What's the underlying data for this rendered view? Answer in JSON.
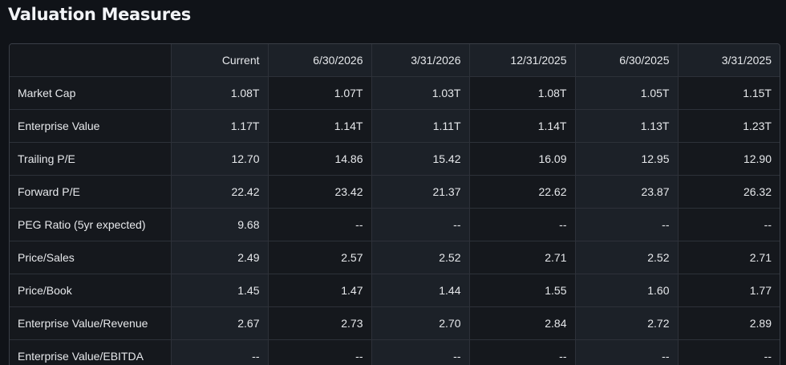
{
  "title": "Valuation Measures",
  "columns": [
    "Current",
    "6/30/2026",
    "3/31/2026",
    "12/31/2025",
    "6/30/2025",
    "3/31/2025"
  ],
  "rows": [
    {
      "label": "Market Cap",
      "values": [
        "1.08T",
        "1.07T",
        "1.03T",
        "1.08T",
        "1.05T",
        "1.15T"
      ]
    },
    {
      "label": "Enterprise Value",
      "values": [
        "1.17T",
        "1.14T",
        "1.11T",
        "1.14T",
        "1.13T",
        "1.23T"
      ]
    },
    {
      "label": "Trailing P/E",
      "values": [
        "12.70",
        "14.86",
        "15.42",
        "16.09",
        "12.95",
        "12.90"
      ]
    },
    {
      "label": "Forward P/E",
      "values": [
        "22.42",
        "23.42",
        "21.37",
        "22.62",
        "23.87",
        "26.32"
      ]
    },
    {
      "label": "PEG Ratio (5yr expected)",
      "values": [
        "9.68",
        "--",
        "--",
        "--",
        "--",
        "--"
      ]
    },
    {
      "label": "Price/Sales",
      "values": [
        "2.49",
        "2.57",
        "2.52",
        "2.71",
        "2.52",
        "2.71"
      ]
    },
    {
      "label": "Price/Book",
      "values": [
        "1.45",
        "1.47",
        "1.44",
        "1.55",
        "1.60",
        "1.77"
      ]
    },
    {
      "label": "Enterprise Value/Revenue",
      "values": [
        "2.67",
        "2.73",
        "2.70",
        "2.84",
        "2.72",
        "2.89"
      ]
    },
    {
      "label": "Enterprise Value/EBITDA",
      "values": [
        "--",
        "--",
        "--",
        "--",
        "--",
        "--"
      ]
    }
  ]
}
